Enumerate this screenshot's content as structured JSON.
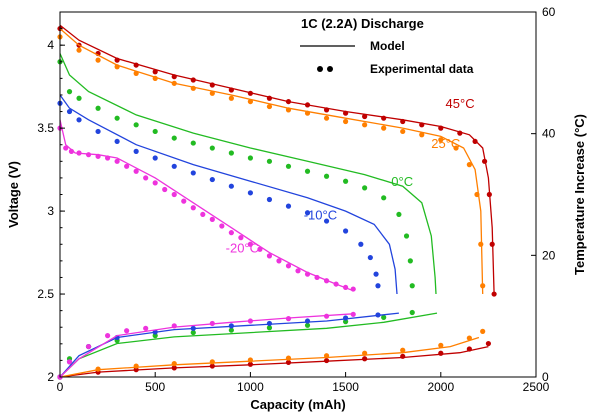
{
  "chart_data": {
    "type": "line",
    "xlabel": "Capacity (mAh)",
    "ylabel": "Voltage (V)",
    "y2label": "Temperature Increase (°C)",
    "xlim": [
      0,
      2500
    ],
    "ylim": [
      2,
      4.2
    ],
    "y2lim": [
      0,
      60
    ],
    "xticks": [
      "0",
      "500",
      "1000",
      "1500",
      "2000",
      "2500"
    ],
    "yticks": [
      "2",
      "2.5",
      "3",
      "3.5",
      "4"
    ],
    "y2ticks": [
      "0",
      "20",
      "40",
      "60"
    ],
    "legend": {
      "title": "1C (2.2A) Discharge",
      "model_label": "Model",
      "experimental_label": "Experimental data",
      "position": "top-right"
    },
    "series": [
      {
        "name": "45°C",
        "color": "#c00000",
        "voltage_model": [
          [
            0,
            4.12
          ],
          [
            100,
            4.03
          ],
          [
            300,
            3.92
          ],
          [
            600,
            3.82
          ],
          [
            900,
            3.74
          ],
          [
            1200,
            3.66
          ],
          [
            1500,
            3.6
          ],
          [
            1800,
            3.55
          ],
          [
            2000,
            3.51
          ],
          [
            2150,
            3.46
          ],
          [
            2220,
            3.38
          ],
          [
            2250,
            3.2
          ],
          [
            2270,
            2.9
          ],
          [
            2280,
            2.5
          ]
        ],
        "voltage_exp": [
          [
            0,
            4.1
          ],
          [
            100,
            4.0
          ],
          [
            200,
            3.95
          ],
          [
            300,
            3.91
          ],
          [
            400,
            3.88
          ],
          [
            500,
            3.84
          ],
          [
            600,
            3.81
          ],
          [
            700,
            3.79
          ],
          [
            800,
            3.76
          ],
          [
            900,
            3.73
          ],
          [
            1000,
            3.71
          ],
          [
            1100,
            3.68
          ],
          [
            1200,
            3.66
          ],
          [
            1300,
            3.64
          ],
          [
            1400,
            3.61
          ],
          [
            1500,
            3.59
          ],
          [
            1600,
            3.57
          ],
          [
            1700,
            3.56
          ],
          [
            1800,
            3.54
          ],
          [
            1900,
            3.52
          ],
          [
            2000,
            3.5
          ],
          [
            2100,
            3.47
          ],
          [
            2180,
            3.42
          ],
          [
            2230,
            3.3
          ],
          [
            2255,
            3.1
          ],
          [
            2270,
            2.8
          ],
          [
            2280,
            2.5
          ]
        ],
        "temp_model": [
          [
            0,
            0
          ],
          [
            200,
            0.8
          ],
          [
            600,
            1.5
          ],
          [
            1000,
            2
          ],
          [
            1400,
            2.6
          ],
          [
            1800,
            3.2
          ],
          [
            2100,
            4
          ],
          [
            2250,
            5
          ]
        ],
        "temp_exp": [
          [
            0,
            0
          ],
          [
            200,
            0.8
          ],
          [
            400,
            1.2
          ],
          [
            600,
            1.5
          ],
          [
            800,
            1.8
          ],
          [
            1000,
            2.1
          ],
          [
            1200,
            2.4
          ],
          [
            1400,
            2.7
          ],
          [
            1600,
            3
          ],
          [
            1800,
            3.4
          ],
          [
            2000,
            3.9
          ],
          [
            2150,
            4.6
          ],
          [
            2250,
            5.5
          ]
        ]
      },
      {
        "name": "25°C",
        "color": "#ff7f00",
        "voltage_model": [
          [
            0,
            4.1
          ],
          [
            100,
            4.0
          ],
          [
            300,
            3.88
          ],
          [
            600,
            3.77
          ],
          [
            900,
            3.7
          ],
          [
            1200,
            3.62
          ],
          [
            1500,
            3.56
          ],
          [
            1800,
            3.5
          ],
          [
            2000,
            3.45
          ],
          [
            2120,
            3.38
          ],
          [
            2180,
            3.25
          ],
          [
            2210,
            3.0
          ],
          [
            2220,
            2.5
          ]
        ],
        "voltage_exp": [
          [
            0,
            4.05
          ],
          [
            100,
            3.97
          ],
          [
            200,
            3.91
          ],
          [
            300,
            3.87
          ],
          [
            400,
            3.83
          ],
          [
            500,
            3.8
          ],
          [
            600,
            3.77
          ],
          [
            700,
            3.74
          ],
          [
            800,
            3.71
          ],
          [
            900,
            3.68
          ],
          [
            1000,
            3.66
          ],
          [
            1100,
            3.63
          ],
          [
            1200,
            3.61
          ],
          [
            1300,
            3.59
          ],
          [
            1400,
            3.56
          ],
          [
            1500,
            3.54
          ],
          [
            1600,
            3.52
          ],
          [
            1700,
            3.5
          ],
          [
            1800,
            3.48
          ],
          [
            1900,
            3.46
          ],
          [
            2000,
            3.43
          ],
          [
            2080,
            3.38
          ],
          [
            2150,
            3.28
          ],
          [
            2190,
            3.1
          ],
          [
            2210,
            2.8
          ],
          [
            2220,
            2.55
          ]
        ],
        "temp_model": [
          [
            0,
            0
          ],
          [
            200,
            1.2
          ],
          [
            600,
            2
          ],
          [
            1000,
            2.6
          ],
          [
            1400,
            3.2
          ],
          [
            1800,
            4
          ],
          [
            2050,
            5
          ],
          [
            2200,
            6.5
          ]
        ],
        "temp_exp": [
          [
            0,
            0
          ],
          [
            200,
            1.3
          ],
          [
            400,
            1.8
          ],
          [
            600,
            2.2
          ],
          [
            800,
            2.5
          ],
          [
            1000,
            2.8
          ],
          [
            1200,
            3.1
          ],
          [
            1400,
            3.5
          ],
          [
            1600,
            3.9
          ],
          [
            1800,
            4.4
          ],
          [
            2000,
            5.2
          ],
          [
            2150,
            6.4
          ],
          [
            2220,
            7.5
          ]
        ]
      },
      {
        "name": "0°C",
        "color": "#22bb22",
        "voltage_model": [
          [
            0,
            3.95
          ],
          [
            50,
            3.82
          ],
          [
            150,
            3.72
          ],
          [
            400,
            3.58
          ],
          [
            700,
            3.47
          ],
          [
            1000,
            3.38
          ],
          [
            1300,
            3.3
          ],
          [
            1600,
            3.22
          ],
          [
            1800,
            3.15
          ],
          [
            1900,
            3.05
          ],
          [
            1950,
            2.85
          ],
          [
            1970,
            2.6
          ],
          [
            1975,
            2.5
          ]
        ],
        "voltage_exp": [
          [
            0,
            3.9
          ],
          [
            50,
            3.72
          ],
          [
            100,
            3.68
          ],
          [
            200,
            3.62
          ],
          [
            300,
            3.56
          ],
          [
            400,
            3.52
          ],
          [
            500,
            3.48
          ],
          [
            600,
            3.44
          ],
          [
            700,
            3.41
          ],
          [
            800,
            3.38
          ],
          [
            900,
            3.35
          ],
          [
            1000,
            3.32
          ],
          [
            1100,
            3.3
          ],
          [
            1200,
            3.27
          ],
          [
            1300,
            3.24
          ],
          [
            1400,
            3.21
          ],
          [
            1500,
            3.18
          ],
          [
            1600,
            3.14
          ],
          [
            1700,
            3.08
          ],
          [
            1780,
            2.98
          ],
          [
            1820,
            2.85
          ],
          [
            1840,
            2.7
          ],
          [
            1850,
            2.55
          ]
        ],
        "temp_model": [
          [
            0,
            0
          ],
          [
            100,
            3
          ],
          [
            300,
            5.5
          ],
          [
            600,
            6.6
          ],
          [
            1000,
            7.3
          ],
          [
            1400,
            8
          ],
          [
            1700,
            9
          ],
          [
            1980,
            10.5
          ]
        ],
        "temp_exp": [
          [
            0,
            0
          ],
          [
            50,
            3
          ],
          [
            150,
            5
          ],
          [
            300,
            6
          ],
          [
            500,
            6.8
          ],
          [
            700,
            7.3
          ],
          [
            900,
            7.7
          ],
          [
            1100,
            8.1
          ],
          [
            1300,
            8.5
          ],
          [
            1500,
            9.1
          ],
          [
            1700,
            9.8
          ],
          [
            1850,
            10.6
          ]
        ]
      },
      {
        "name": "-10°C",
        "color": "#2244dd",
        "voltage_model": [
          [
            0,
            3.7
          ],
          [
            50,
            3.62
          ],
          [
            150,
            3.55
          ],
          [
            400,
            3.4
          ],
          [
            700,
            3.28
          ],
          [
            1000,
            3.18
          ],
          [
            1300,
            3.08
          ],
          [
            1500,
            3.0
          ],
          [
            1650,
            2.92
          ],
          [
            1730,
            2.8
          ],
          [
            1760,
            2.65
          ],
          [
            1770,
            2.5
          ]
        ],
        "voltage_exp": [
          [
            0,
            3.65
          ],
          [
            50,
            3.6
          ],
          [
            100,
            3.55
          ],
          [
            200,
            3.48
          ],
          [
            300,
            3.42
          ],
          [
            400,
            3.36
          ],
          [
            500,
            3.32
          ],
          [
            600,
            3.27
          ],
          [
            700,
            3.23
          ],
          [
            800,
            3.19
          ],
          [
            900,
            3.15
          ],
          [
            1000,
            3.11
          ],
          [
            1100,
            3.07
          ],
          [
            1200,
            3.03
          ],
          [
            1300,
            2.99
          ],
          [
            1400,
            2.94
          ],
          [
            1500,
            2.88
          ],
          [
            1580,
            2.8
          ],
          [
            1630,
            2.72
          ],
          [
            1660,
            2.62
          ],
          [
            1670,
            2.55
          ]
        ],
        "temp_model": [
          [
            0,
            0
          ],
          [
            100,
            3.5
          ],
          [
            300,
            6.5
          ],
          [
            600,
            7.8
          ],
          [
            1000,
            8.5
          ],
          [
            1400,
            9.2
          ],
          [
            1780,
            10.5
          ]
        ],
        "temp_exp": [
          [
            0,
            0
          ],
          [
            50,
            2.5
          ],
          [
            150,
            5
          ],
          [
            300,
            6.5
          ],
          [
            500,
            7.4
          ],
          [
            700,
            8
          ],
          [
            900,
            8.4
          ],
          [
            1100,
            8.8
          ],
          [
            1300,
            9.2
          ],
          [
            1500,
            9.7
          ],
          [
            1670,
            10.2
          ]
        ]
      },
      {
        "name": "-20°C",
        "color": "#ee33dd",
        "voltage_model": [
          [
            0,
            3.55
          ],
          [
            30,
            3.4
          ],
          [
            80,
            3.35
          ],
          [
            200,
            3.34
          ],
          [
            300,
            3.32
          ],
          [
            500,
            3.2
          ],
          [
            700,
            3.05
          ],
          [
            900,
            2.9
          ],
          [
            1100,
            2.75
          ],
          [
            1300,
            2.63
          ],
          [
            1450,
            2.56
          ],
          [
            1540,
            2.52
          ]
        ],
        "voltage_exp": [
          [
            0,
            3.5
          ],
          [
            30,
            3.38
          ],
          [
            60,
            3.36
          ],
          [
            100,
            3.35
          ],
          [
            150,
            3.34
          ],
          [
            200,
            3.33
          ],
          [
            250,
            3.32
          ],
          [
            300,
            3.3
          ],
          [
            350,
            3.27
          ],
          [
            400,
            3.24
          ],
          [
            450,
            3.2
          ],
          [
            500,
            3.17
          ],
          [
            550,
            3.13
          ],
          [
            600,
            3.1
          ],
          [
            650,
            3.06
          ],
          [
            700,
            3.02
          ],
          [
            750,
            2.98
          ],
          [
            800,
            2.95
          ],
          [
            850,
            2.91
          ],
          [
            900,
            2.87
          ],
          [
            950,
            2.84
          ],
          [
            1000,
            2.8
          ],
          [
            1050,
            2.77
          ],
          [
            1100,
            2.73
          ],
          [
            1150,
            2.7
          ],
          [
            1200,
            2.67
          ],
          [
            1250,
            2.64
          ],
          [
            1300,
            2.62
          ],
          [
            1350,
            2.6
          ],
          [
            1400,
            2.58
          ],
          [
            1450,
            2.56
          ],
          [
            1500,
            2.54
          ],
          [
            1540,
            2.53
          ]
        ],
        "temp_model": [
          [
            0,
            0
          ],
          [
            100,
            3
          ],
          [
            300,
            6.8
          ],
          [
            600,
            8.2
          ],
          [
            900,
            9
          ],
          [
            1200,
            9.7
          ],
          [
            1550,
            10.4
          ]
        ],
        "temp_exp": [
          [
            0,
            0
          ],
          [
            50,
            2.5
          ],
          [
            150,
            5
          ],
          [
            250,
            6.8
          ],
          [
            350,
            7.6
          ],
          [
            450,
            8
          ],
          [
            600,
            8.4
          ],
          [
            800,
            8.8
          ],
          [
            1000,
            9.2
          ],
          [
            1200,
            9.6
          ],
          [
            1400,
            10
          ],
          [
            1540,
            10.3
          ]
        ]
      }
    ]
  }
}
